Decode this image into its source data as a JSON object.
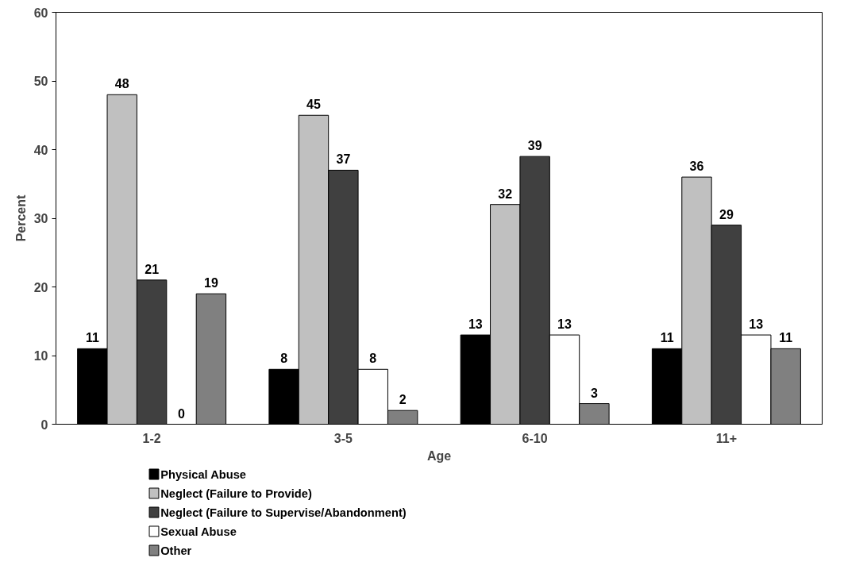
{
  "chart_data": {
    "type": "bar",
    "xlabel": "Age",
    "ylabel": "Percent",
    "categories": [
      "1-2",
      "3-5",
      "6-10",
      "11+"
    ],
    "series": [
      {
        "name": "Physical Abuse",
        "color": "#000000",
        "values": [
          11,
          8,
          13,
          11
        ]
      },
      {
        "name": "Neglect (Failure to Provide)",
        "color": "#c0c0c0",
        "values": [
          48,
          45,
          32,
          36
        ]
      },
      {
        "name": "Neglect (Failure to Supervise/Abandonment)",
        "color": "#404040",
        "values": [
          21,
          37,
          39,
          29
        ]
      },
      {
        "name": "Sexual Abuse",
        "color": "#ffffff",
        "values": [
          0,
          8,
          13,
          13
        ]
      },
      {
        "name": "Other",
        "color": "#808080",
        "values": [
          19,
          2,
          3,
          11
        ]
      }
    ],
    "ylim": [
      0,
      60
    ],
    "yticks": [
      0,
      10,
      20,
      30,
      40,
      50,
      60
    ],
    "grid": false,
    "legend": "bottom left",
    "data_labels": true
  }
}
